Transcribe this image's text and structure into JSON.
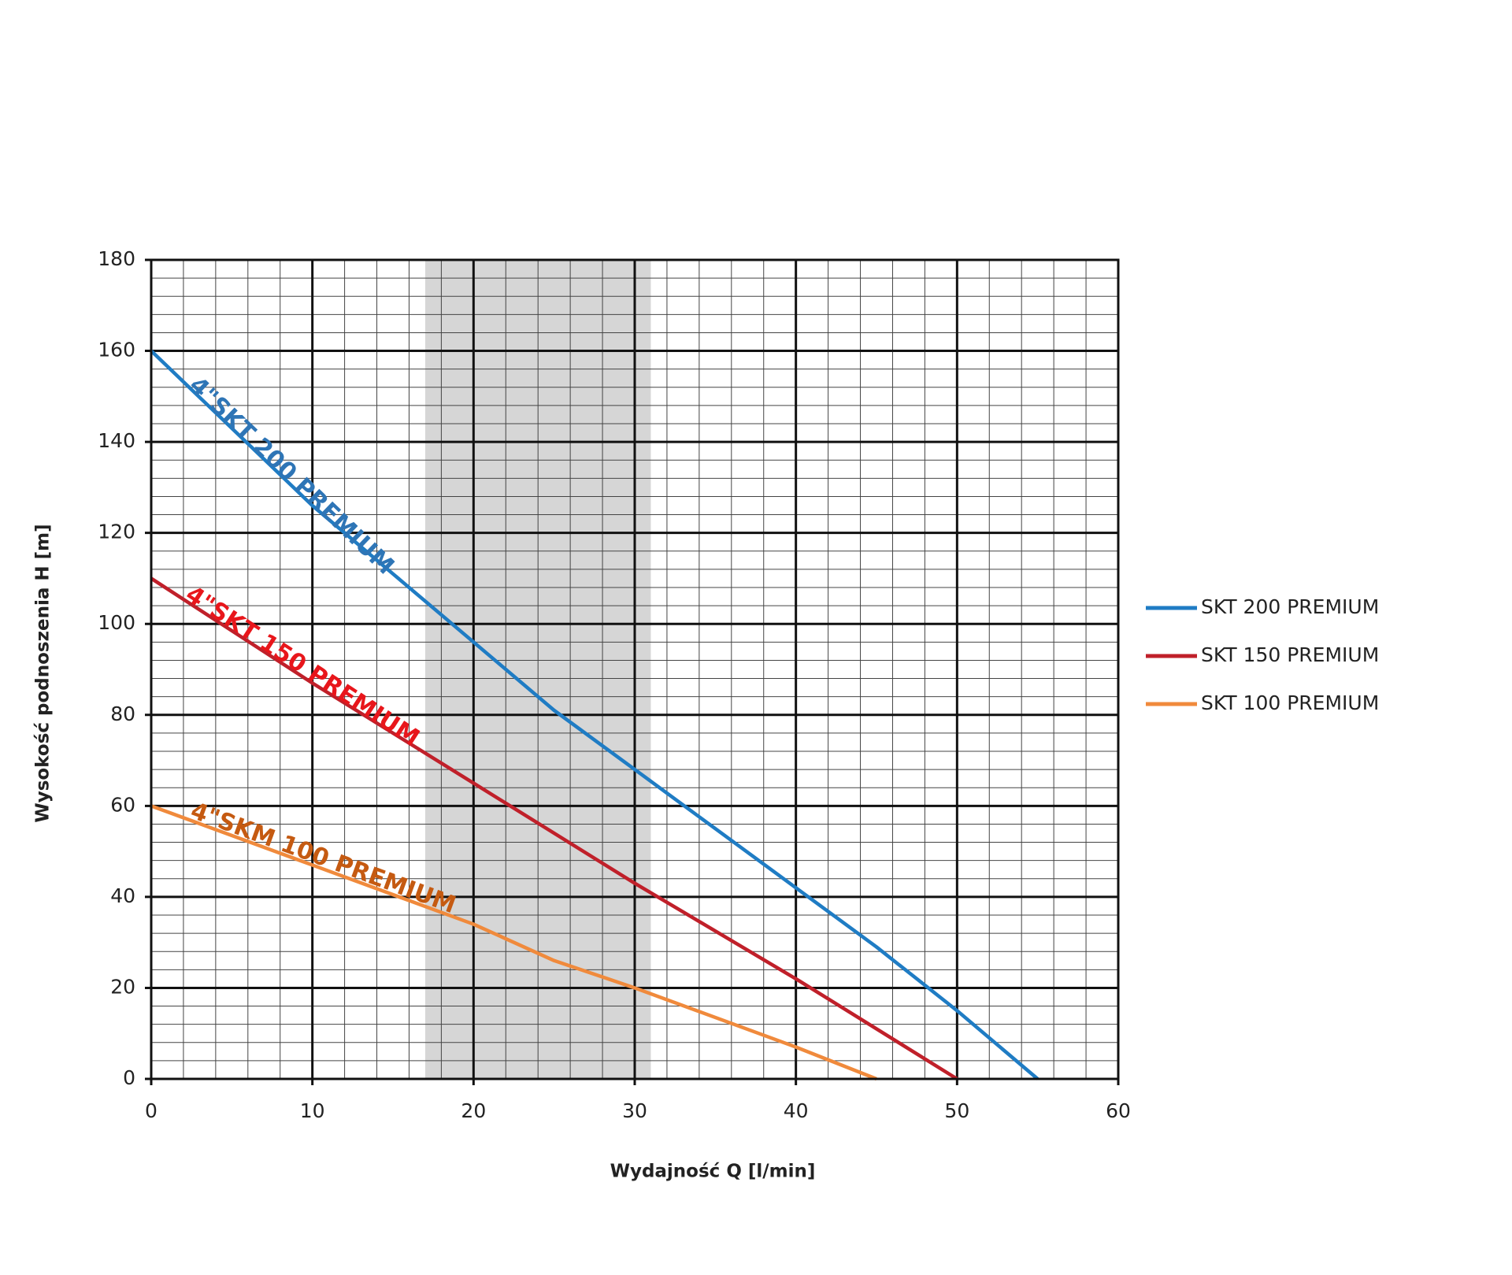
{
  "chart_data": {
    "type": "line",
    "x_label": "Wydajność Q [l/min]",
    "y_label": "Wysokość podnoszenia H [m]",
    "xlim": [
      0,
      60
    ],
    "xticks": [
      0,
      10,
      20,
      30,
      40,
      50,
      60
    ],
    "ylim": [
      0,
      180
    ],
    "yticks": [
      0,
      20,
      40,
      60,
      80,
      100,
      120,
      140,
      160,
      180
    ],
    "grid": true,
    "shaded_range": [
      17,
      31
    ],
    "shade_color": "#d6d6d6",
    "legend": "right",
    "series": [
      {
        "name": "SKT 200 PREMIUM",
        "color": "#1f7cc4",
        "x": [
          0,
          5,
          10,
          15,
          20,
          25,
          30,
          35,
          40,
          45,
          50,
          55
        ],
        "values": [
          160,
          143,
          126,
          111,
          96,
          81,
          68,
          55,
          42,
          29,
          15,
          0
        ]
      },
      {
        "name": "SKT 150 PREMIUM",
        "color": "#c0202a",
        "x": [
          0,
          10,
          20,
          30,
          40,
          50
        ],
        "values": [
          110,
          87,
          65,
          43,
          22,
          0
        ]
      },
      {
        "name": "SKT 100 PREMIUM",
        "color": "#f08a3c",
        "x": [
          0,
          10,
          20,
          25,
          30,
          40,
          45
        ],
        "values": [
          60,
          47,
          34,
          26,
          20,
          7,
          0
        ]
      }
    ],
    "annotations": [
      {
        "text": "4\"SKT 200 PREMIUM",
        "color": "#2e75b6"
      },
      {
        "text": "4\"SKT 150 PREMIUM",
        "color": "#e8161b"
      },
      {
        "text": "4\"SKM 100 PREMIUM",
        "color": "#c55a11"
      }
    ]
  }
}
